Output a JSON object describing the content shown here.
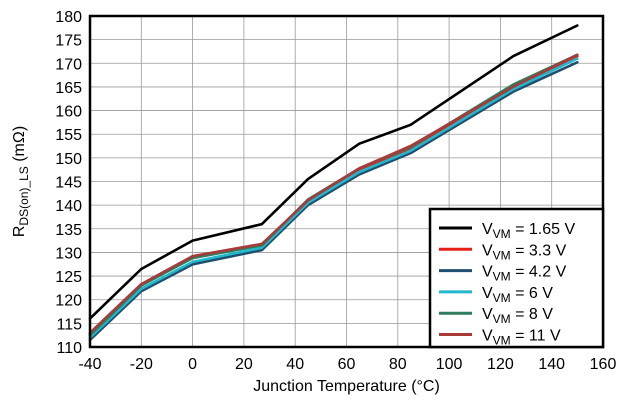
{
  "chart_data": {
    "type": "line",
    "xlabel": "Junction Temperature (°C)",
    "ylabel": {
      "main": "R",
      "sub": "DS(on)_LS",
      "unit": " (mΩ)"
    },
    "xlim": [
      -40,
      160
    ],
    "ylim": [
      110,
      180
    ],
    "xticks": [
      -40,
      -20,
      0,
      20,
      40,
      60,
      80,
      100,
      120,
      140,
      160
    ],
    "yticks": [
      110,
      115,
      120,
      125,
      130,
      135,
      140,
      145,
      150,
      155,
      160,
      165,
      170,
      175,
      180
    ],
    "grid": true,
    "legend_position": "bottom-right",
    "x": [
      -40,
      -20,
      0,
      27,
      45,
      65,
      85,
      125,
      150
    ],
    "series": [
      {
        "name": {
          "main": "V",
          "sub": "VM",
          "value": " = 1.65 V"
        },
        "color": "#000000",
        "values": [
          116,
          126.5,
          132.5,
          136,
          145.5,
          153,
          157,
          171.5,
          178
        ]
      },
      {
        "name": {
          "main": "V",
          "sub": "VM",
          "value": " = 3.3 V"
        },
        "color": "#e8201a",
        "values": [
          112.8,
          123,
          129,
          131.5,
          141,
          147.5,
          152,
          165,
          171.5
        ]
      },
      {
        "name": {
          "main": "V",
          "sub": "VM",
          "value": " = 4.2 V"
        },
        "color": "#1f4f6e",
        "values": [
          111.5,
          121.8,
          127.5,
          130.5,
          140,
          146.5,
          151,
          164,
          170.2
        ]
      },
      {
        "name": {
          "main": "V",
          "sub": "VM",
          "value": " = 6 V"
        },
        "color": "#22b8cc",
        "values": [
          112,
          122.3,
          128,
          131,
          140.5,
          147,
          151.5,
          164.5,
          171
        ]
      },
      {
        "name": {
          "main": "V",
          "sub": "VM",
          "value": " = 8 V"
        },
        "color": "#2f7d5c",
        "values": [
          112.5,
          123,
          128.8,
          131.5,
          141.2,
          147.8,
          152.3,
          165.5,
          171.8
        ]
      },
      {
        "name": {
          "main": "V",
          "sub": "VM",
          "value": " = 11 V"
        },
        "color": "#a83a3a",
        "values": [
          113,
          123.3,
          129.2,
          131.8,
          141,
          147.8,
          152.5,
          165,
          171.8
        ]
      }
    ]
  }
}
